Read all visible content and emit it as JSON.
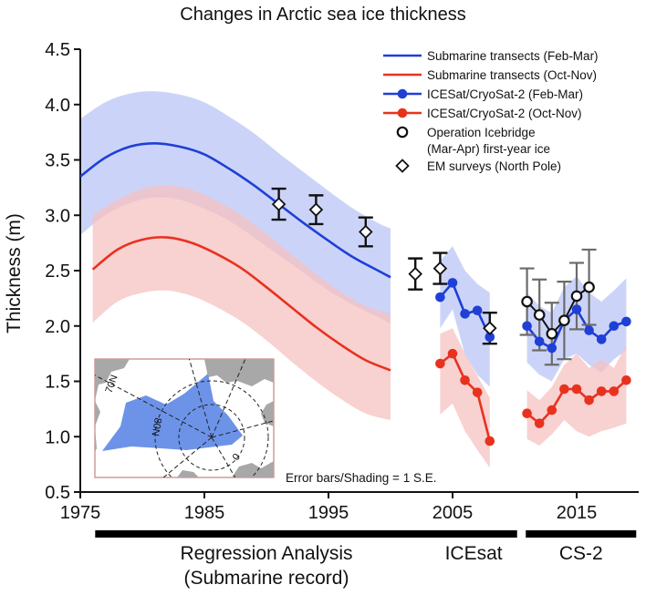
{
  "chart_data": {
    "type": "line",
    "title": "Changes in Arctic sea ice thickness",
    "ylabel": "Thickness (m)",
    "xlabel": "",
    "xlim": [
      1975,
      2020
    ],
    "ylim": [
      0.5,
      4.5
    ],
    "xticks": [
      1975,
      1985,
      1995,
      2005,
      2015
    ],
    "yticks": [
      "0.5",
      "1.0",
      "1.5",
      "2.0",
      "2.5",
      "3.0",
      "3.5",
      "4.0",
      "4.5"
    ],
    "legend_position": "top-right",
    "annotation": "Error bars/Shading = 1 S.E.",
    "series": [
      {
        "name": "Submarine transects (Feb-Mar)",
        "style": "line",
        "color": "#1f3fd6",
        "band_color": "#b9c6f5",
        "x": [
          1975,
          1977,
          1979,
          1981,
          1983,
          1985,
          1987,
          1989,
          1991,
          1993,
          1995,
          1997,
          1999,
          2000
        ],
        "y": [
          3.35,
          3.52,
          3.62,
          3.65,
          3.62,
          3.55,
          3.42,
          3.27,
          3.1,
          2.93,
          2.77,
          2.62,
          2.5,
          2.44
        ],
        "lower": [
          2.82,
          3.0,
          3.11,
          3.16,
          3.14,
          3.06,
          2.95,
          2.8,
          2.64,
          2.48,
          2.32,
          2.19,
          2.08,
          2.02
        ],
        "upper": [
          3.87,
          4.02,
          4.1,
          4.12,
          4.09,
          4.02,
          3.89,
          3.74,
          3.56,
          3.39,
          3.22,
          3.06,
          2.93,
          2.88
        ]
      },
      {
        "name": "Submarine transects (Oct-Nov)",
        "style": "line",
        "color": "#e8321e",
        "band_color": "#f6c1c1",
        "x": [
          1976,
          1978,
          1980,
          1982,
          1984,
          1986,
          1988,
          1990,
          1992,
          1994,
          1996,
          1998,
          2000
        ],
        "y": [
          2.51,
          2.69,
          2.78,
          2.8,
          2.75,
          2.65,
          2.52,
          2.35,
          2.17,
          1.99,
          1.83,
          1.69,
          1.6
        ],
        "lower": [
          2.03,
          2.22,
          2.3,
          2.32,
          2.27,
          2.17,
          2.04,
          1.87,
          1.68,
          1.5,
          1.34,
          1.21,
          1.15
        ],
        "upper": [
          3.0,
          3.14,
          3.24,
          3.27,
          3.23,
          3.13,
          3.0,
          2.83,
          2.65,
          2.47,
          2.31,
          2.18,
          2.11
        ]
      },
      {
        "name": "ICESat/CryoSat-2 (Feb-Mar)",
        "style": "line-marker",
        "color": "#1f3fd6",
        "band_color": "#b9c6f5",
        "segments": [
          {
            "x": [
              2004.0,
              2005.0,
              2006.0,
              2007.0,
              2008.0
            ],
            "y": [
              2.26,
              2.39,
              2.11,
              2.14,
              1.9
            ],
            "lower": [
              1.98,
              2.15,
              1.74,
              1.56,
              1.45
            ],
            "upper": [
              2.59,
              2.72,
              2.5,
              2.38,
              2.3
            ]
          },
          {
            "x": [
              2011,
              2012,
              2013,
              2014,
              2015,
              2016,
              2017,
              2018,
              2019
            ],
            "y": [
              2.0,
              1.86,
              1.8,
              2.05,
              2.15,
              1.96,
              1.88,
              2.0,
              2.04
            ],
            "lower": [
              1.67,
              1.56,
              1.5,
              1.7,
              1.75,
              1.65,
              1.58,
              1.7,
              1.78
            ],
            "upper": [
              2.3,
              2.18,
              2.12,
              2.35,
              2.45,
              2.3,
              2.22,
              2.32,
              2.43
            ]
          }
        ]
      },
      {
        "name": "ICESat/CryoSat-2 (Oct-Nov)",
        "style": "line-marker",
        "color": "#e8321e",
        "band_color": "#f6c1c1",
        "segments": [
          {
            "x": [
              2004.0,
              2005.0,
              2006.0,
              2007.0,
              2008.0
            ],
            "y": [
              1.66,
              1.75,
              1.51,
              1.4,
              0.96
            ],
            "lower": [
              1.2,
              1.3,
              1.05,
              0.88,
              0.72
            ],
            "upper": [
              1.93,
              1.98,
              1.75,
              1.55,
              1.35
            ]
          },
          {
            "x": [
              2011,
              2012,
              2013,
              2014,
              2015,
              2016,
              2017,
              2018,
              2019
            ],
            "y": [
              1.21,
              1.12,
              1.24,
              1.43,
              1.43,
              1.33,
              1.41,
              1.41,
              1.51
            ],
            "lower": [
              0.98,
              0.92,
              1.02,
              1.15,
              1.05,
              1.0,
              1.05,
              1.08,
              1.12
            ],
            "upper": [
              1.42,
              1.33,
              1.45,
              1.65,
              1.75,
              1.62,
              1.7,
              1.62,
              1.83
            ]
          }
        ]
      },
      {
        "name": "Operation Icebridge (Mar-Apr) first-year ice",
        "legend_lines": [
          "Operation Icebridge",
          "(Mar-Apr) first-year ice"
        ],
        "style": "open-circle-errorbar",
        "color": "#111111",
        "error_color": "#6b6b6b",
        "x": [
          2011.0,
          2012.0,
          2013.0,
          2014.0,
          2015.0,
          2016.0
        ],
        "y": [
          2.22,
          2.1,
          1.93,
          2.05,
          2.27,
          2.35
        ],
        "err": [
          0.3,
          0.32,
          0.28,
          0.35,
          0.3,
          0.34
        ]
      },
      {
        "name": "EM surveys (North Pole)",
        "style": "diamond-errorbar",
        "color": "#111111",
        "x": [
          1991.0,
          1994.0,
          1998.0,
          2002.0,
          2004.0,
          2008.0
        ],
        "y": [
          3.1,
          3.05,
          2.85,
          2.47,
          2.52,
          1.98
        ],
        "err": [
          0.14,
          0.13,
          0.13,
          0.14,
          0.14,
          0.14
        ]
      }
    ],
    "periods": [
      {
        "label_lines": [
          "Regression Analysis",
          "(Submarine record)"
        ],
        "start": 1976.2,
        "end": 2003.8
      },
      {
        "label_lines": [
          "ICEsat"
        ],
        "start": 2003.2,
        "end": 2010.2
      },
      {
        "label_lines": [
          "CS-2"
        ],
        "start": 2010.9,
        "end": 2019.8
      }
    ],
    "inset_map": {
      "labels": [
        "70N",
        "80N",
        "0"
      ],
      "colors": {
        "region": "#6c93e8",
        "land": "#a8a8a8",
        "frame": "#c98c8c"
      }
    }
  }
}
